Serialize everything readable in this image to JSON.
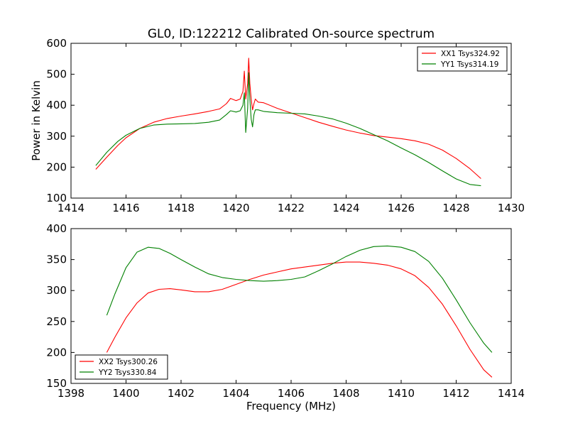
{
  "figure": {
    "title": "GL0, ID:122212 Calibrated On-source spectrum"
  },
  "chart_data": [
    {
      "type": "line",
      "title": "GL0, ID:122212 Calibrated On-source spectrum",
      "xlabel": "",
      "ylabel": "Power in Kelvin",
      "xlim": [
        1414,
        1430
      ],
      "ylim": [
        100,
        600
      ],
      "xticks": [
        1414,
        1416,
        1418,
        1420,
        1422,
        1424,
        1426,
        1428,
        1430
      ],
      "yticks": [
        100,
        200,
        300,
        400,
        500,
        600
      ],
      "grid": false,
      "legend_position": "upper right",
      "series": [
        {
          "name": "XX1 Tsys324.92",
          "color": "#ff0000",
          "x": [
            1414.9,
            1415.3,
            1415.7,
            1416.0,
            1416.5,
            1417.0,
            1417.5,
            1418.0,
            1418.5,
            1419.0,
            1419.4,
            1419.65,
            1419.8,
            1420.0,
            1420.15,
            1420.25,
            1420.3,
            1420.35,
            1420.42,
            1420.46,
            1420.5,
            1420.55,
            1420.6,
            1420.65,
            1420.7,
            1420.8,
            1421.0,
            1421.5,
            1422.0,
            1422.5,
            1423.0,
            1423.5,
            1424.0,
            1424.5,
            1425.0,
            1425.5,
            1426.0,
            1426.5,
            1427.0,
            1427.5,
            1428.0,
            1428.5,
            1428.9
          ],
          "values": [
            193,
            232,
            270,
            295,
            325,
            345,
            357,
            365,
            372,
            380,
            388,
            405,
            422,
            415,
            420,
            445,
            510,
            420,
            470,
            552,
            470,
            420,
            385,
            405,
            420,
            410,
            408,
            390,
            375,
            360,
            345,
            332,
            320,
            310,
            302,
            297,
            292,
            285,
            274,
            255,
            228,
            195,
            163
          ]
        },
        {
          "name": "YY1 Tsys314.19",
          "color": "#008000",
          "x": [
            1414.9,
            1415.3,
            1415.7,
            1416.0,
            1416.5,
            1417.0,
            1417.5,
            1418.0,
            1418.5,
            1419.0,
            1419.4,
            1419.65,
            1419.8,
            1420.0,
            1420.15,
            1420.25,
            1420.3,
            1420.35,
            1420.42,
            1420.46,
            1420.5,
            1420.55,
            1420.6,
            1420.65,
            1420.7,
            1420.8,
            1421.0,
            1421.5,
            1422.0,
            1422.5,
            1423.0,
            1423.5,
            1424.0,
            1424.5,
            1425.0,
            1425.5,
            1426.0,
            1426.5,
            1427.0,
            1427.5,
            1428.0,
            1428.5,
            1428.9
          ],
          "values": [
            205,
            248,
            283,
            303,
            325,
            336,
            339,
            340,
            341,
            345,
            352,
            370,
            382,
            378,
            382,
            400,
            440,
            312,
            390,
            505,
            420,
            355,
            330,
            370,
            385,
            385,
            380,
            376,
            374,
            372,
            365,
            356,
            342,
            325,
            305,
            285,
            262,
            240,
            215,
            188,
            162,
            144,
            140
          ]
        }
      ]
    },
    {
      "type": "line",
      "title": "",
      "xlabel": "Frequency (MHz)",
      "ylabel": "",
      "xlim": [
        1398,
        1414
      ],
      "ylim": [
        150,
        400
      ],
      "xticks": [
        1398,
        1400,
        1402,
        1404,
        1406,
        1408,
        1410,
        1412,
        1414
      ],
      "yticks": [
        150,
        200,
        250,
        300,
        350,
        400
      ],
      "grid": false,
      "legend_position": "lower left",
      "series": [
        {
          "name": "XX2 Tsys300.26",
          "color": "#ff0000",
          "x": [
            1399.3,
            1399.6,
            1400.0,
            1400.4,
            1400.8,
            1401.2,
            1401.6,
            1402.0,
            1402.5,
            1403.0,
            1403.5,
            1404.0,
            1404.5,
            1405.0,
            1405.5,
            1406.0,
            1406.5,
            1407.0,
            1407.5,
            1408.0,
            1408.5,
            1409.0,
            1409.5,
            1410.0,
            1410.5,
            1411.0,
            1411.5,
            1412.0,
            1412.5,
            1413.0,
            1413.3
          ],
          "values": [
            200,
            225,
            256,
            280,
            296,
            302,
            303,
            301,
            298,
            298,
            302,
            310,
            318,
            325,
            330,
            335,
            338,
            341,
            344,
            346,
            346,
            344,
            341,
            335,
            324,
            305,
            278,
            243,
            205,
            172,
            160
          ]
        },
        {
          "name": "YY2 Tsys330.84",
          "color": "#008000",
          "x": [
            1399.3,
            1399.6,
            1400.0,
            1400.4,
            1400.8,
            1401.2,
            1401.6,
            1402.0,
            1402.5,
            1403.0,
            1403.5,
            1404.0,
            1404.5,
            1405.0,
            1405.5,
            1406.0,
            1406.5,
            1407.0,
            1407.5,
            1408.0,
            1408.5,
            1409.0,
            1409.5,
            1410.0,
            1410.5,
            1411.0,
            1411.5,
            1412.0,
            1412.5,
            1413.0,
            1413.3
          ],
          "values": [
            260,
            295,
            337,
            362,
            370,
            368,
            360,
            350,
            338,
            327,
            321,
            318,
            316,
            315,
            316,
            318,
            322,
            332,
            343,
            355,
            365,
            371,
            372,
            370,
            363,
            347,
            320,
            285,
            248,
            215,
            200
          ]
        }
      ]
    }
  ]
}
